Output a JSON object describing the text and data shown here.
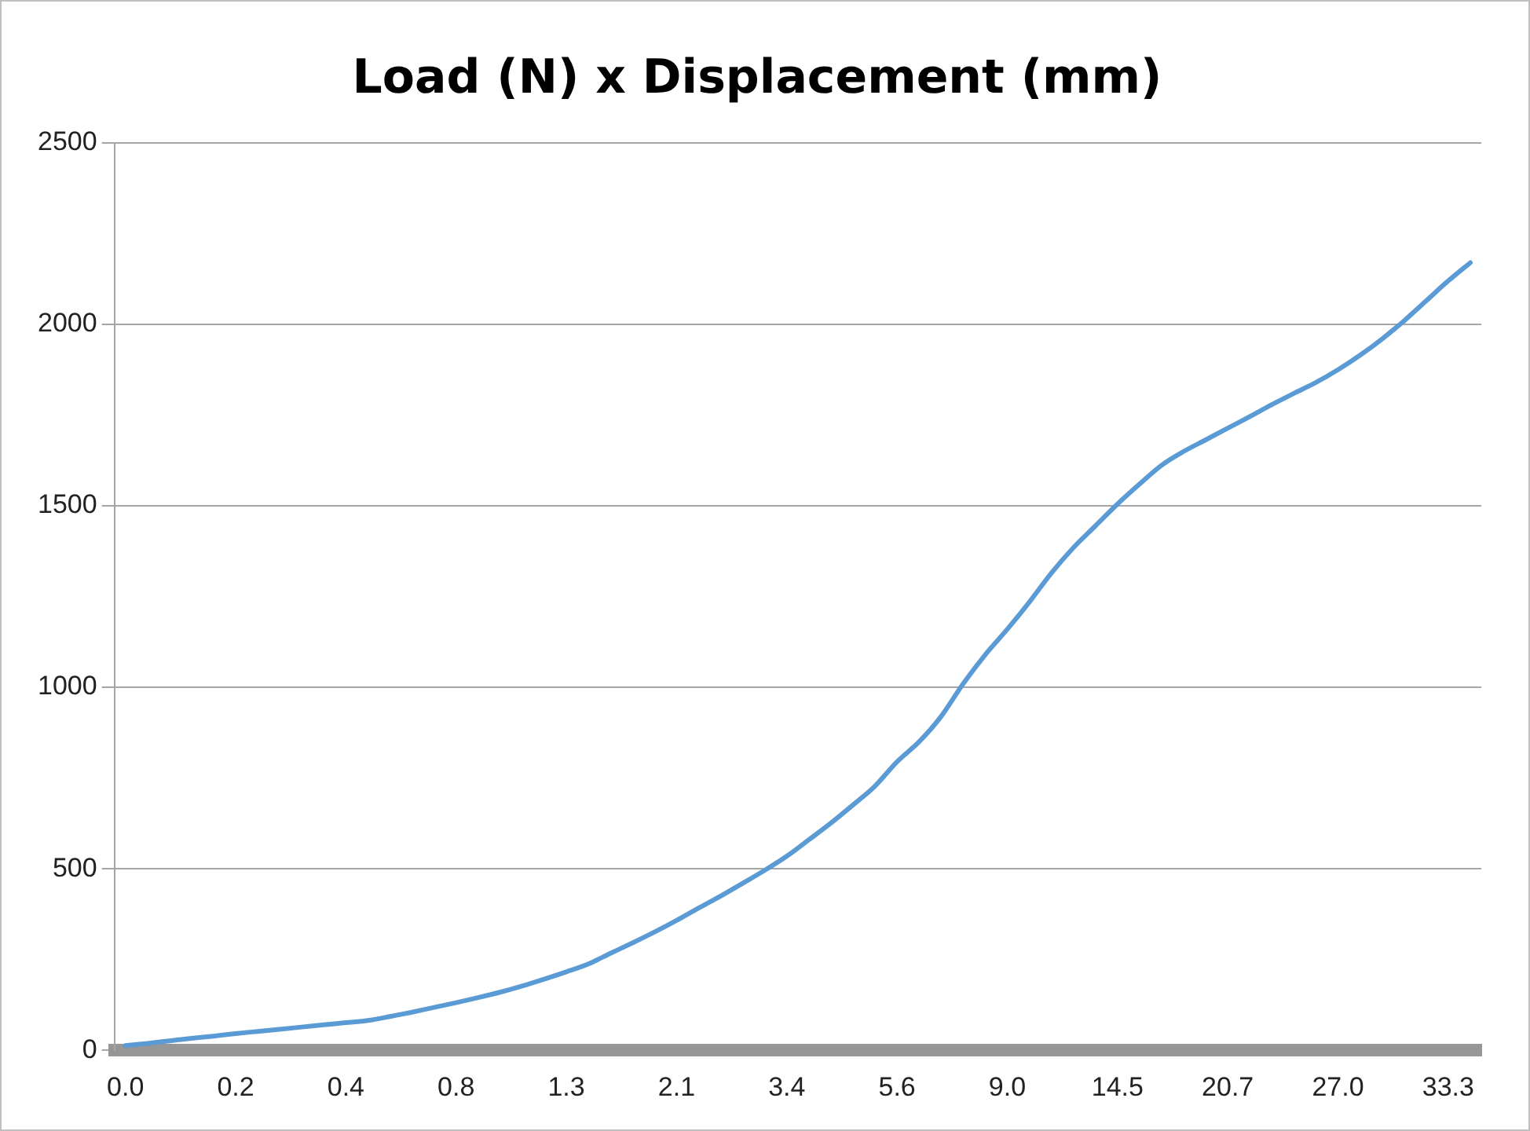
{
  "chart_data": {
    "type": "line",
    "title": "Load (N) x Displacement (mm)",
    "categories": [
      "0.0",
      null,
      null,
      null,
      null,
      "0.2",
      null,
      null,
      null,
      null,
      "0.4",
      null,
      null,
      null,
      null,
      "0.8",
      null,
      null,
      null,
      null,
      "1.3",
      null,
      null,
      null,
      null,
      "2.1",
      null,
      null,
      null,
      null,
      "3.4",
      null,
      null,
      null,
      null,
      "5.6",
      null,
      null,
      null,
      null,
      "9.0",
      null,
      null,
      null,
      null,
      "14.5",
      null,
      null,
      null,
      null,
      "20.7",
      null,
      null,
      null,
      null,
      "27.0",
      null,
      null,
      null,
      null,
      "33.3",
      null
    ],
    "series": [
      {
        "color": "#5b9bd5",
        "values": [
          13,
          19,
          26,
          33,
          39,
          46,
          52,
          58,
          64,
          70,
          76,
          82,
          93,
          105,
          118,
          131,
          145,
          160,
          177,
          196,
          216,
          238,
          267,
          296,
          326,
          358,
          392,
          425,
          460,
          496,
          535,
          580,
          626,
          676,
          728,
          795,
          850,
          920,
          1010,
          1090,
          1160,
          1235,
          1315,
          1385,
          1445,
          1505,
          1560,
          1612,
          1650,
          1682,
          1714,
          1746,
          1779,
          1810,
          1840,
          1875,
          1915,
          1960,
          2010,
          2065,
          2120,
          2170
        ]
      }
    ],
    "ylim": [
      0,
      2500
    ],
    "yticks": [
      0,
      500,
      1000,
      1500,
      2000,
      2500
    ],
    "grid": "y",
    "legend": false,
    "marker": "none",
    "line_style": "solid"
  }
}
